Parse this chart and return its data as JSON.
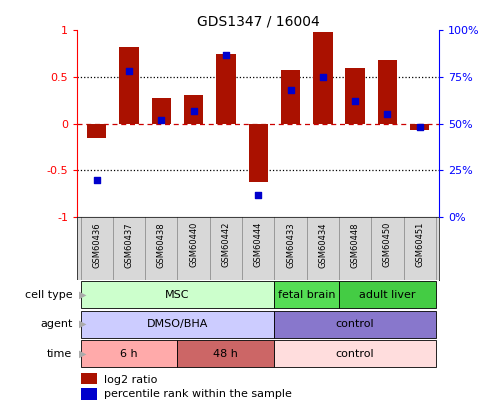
{
  "title": "GDS1347 / 16004",
  "samples": [
    "GSM60436",
    "GSM60437",
    "GSM60438",
    "GSM60440",
    "GSM60442",
    "GSM60444",
    "GSM60433",
    "GSM60434",
    "GSM60448",
    "GSM60450",
    "GSM60451"
  ],
  "log2_ratio": [
    -0.15,
    0.82,
    0.28,
    0.31,
    0.75,
    -0.62,
    0.58,
    0.98,
    0.6,
    0.68,
    -0.07
  ],
  "percentile_rank": [
    20,
    78,
    52,
    57,
    87,
    12,
    68,
    75,
    62,
    55,
    48
  ],
  "bar_color": "#aa1100",
  "dot_color": "#0000cc",
  "cell_type_groups": [
    {
      "label": "MSC",
      "start": 0,
      "end": 5,
      "color": "#ccffcc"
    },
    {
      "label": "fetal brain",
      "start": 6,
      "end": 7,
      "color": "#55dd55"
    },
    {
      "label": "adult liver",
      "start": 8,
      "end": 10,
      "color": "#44cc44"
    }
  ],
  "agent_groups": [
    {
      "label": "DMSO/BHA",
      "start": 0,
      "end": 5,
      "color": "#ccccff"
    },
    {
      "label": "control",
      "start": 6,
      "end": 10,
      "color": "#8877cc"
    }
  ],
  "time_groups": [
    {
      "label": "6 h",
      "start": 0,
      "end": 2,
      "color": "#ffaaaa"
    },
    {
      "label": "48 h",
      "start": 3,
      "end": 5,
      "color": "#cc6666"
    },
    {
      "label": "control",
      "start": 6,
      "end": 10,
      "color": "#ffdddd"
    }
  ],
  "row_labels": [
    "cell type",
    "agent",
    "time"
  ],
  "legend_labels": [
    "log2 ratio",
    "percentile rank within the sample"
  ],
  "legend_colors": [
    "#aa1100",
    "#0000cc"
  ]
}
